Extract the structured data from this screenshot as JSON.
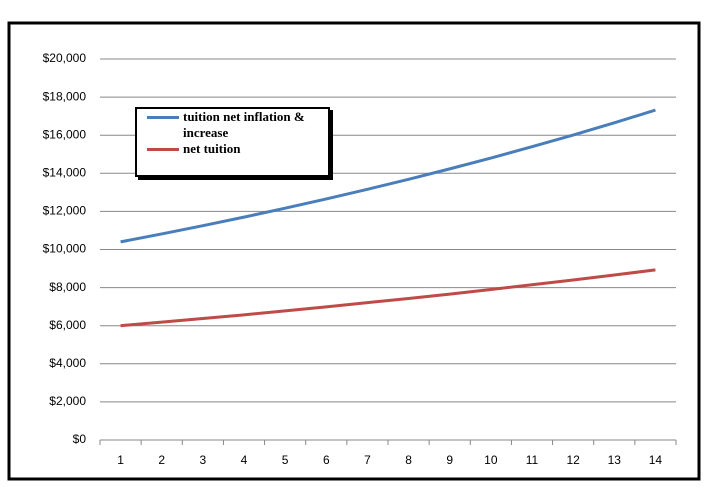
{
  "chart_data": {
    "type": "line",
    "categories": [
      "1",
      "2",
      "3",
      "4",
      "5",
      "6",
      "7",
      "8",
      "9",
      "10",
      "11",
      "12",
      "13",
      "14"
    ],
    "series": [
      {
        "name": "tuition net inflation & increase",
        "color": "#4a7ebb",
        "values": [
          10400,
          10816,
          11249,
          11699,
          12167,
          12653,
          13159,
          13686,
          14233,
          14802,
          15395,
          16010,
          16651,
          17317
        ]
      },
      {
        "name": "net tuition",
        "color": "#be4b48",
        "values": [
          6000,
          6190,
          6380,
          6570,
          6780,
          6990,
          7210,
          7430,
          7660,
          7900,
          8150,
          8400,
          8660,
          8930
        ]
      }
    ],
    "ylim": [
      0,
      20000
    ],
    "yticks": [
      {
        "value": 0,
        "label": "$0"
      },
      {
        "value": 2000,
        "label": "$2,000"
      },
      {
        "value": 4000,
        "label": "$4,000"
      },
      {
        "value": 6000,
        "label": "$6,000"
      },
      {
        "value": 8000,
        "label": "$8,000"
      },
      {
        "value": 10000,
        "label": "$10,000"
      },
      {
        "value": 12000,
        "label": "$12,000"
      },
      {
        "value": 14000,
        "label": "$14,000"
      },
      {
        "value": 16000,
        "label": "$16,000"
      },
      {
        "value": 18000,
        "label": "$18,000"
      },
      {
        "value": 20000,
        "label": "$20,000"
      }
    ],
    "grid": true,
    "legend": "upper left"
  }
}
